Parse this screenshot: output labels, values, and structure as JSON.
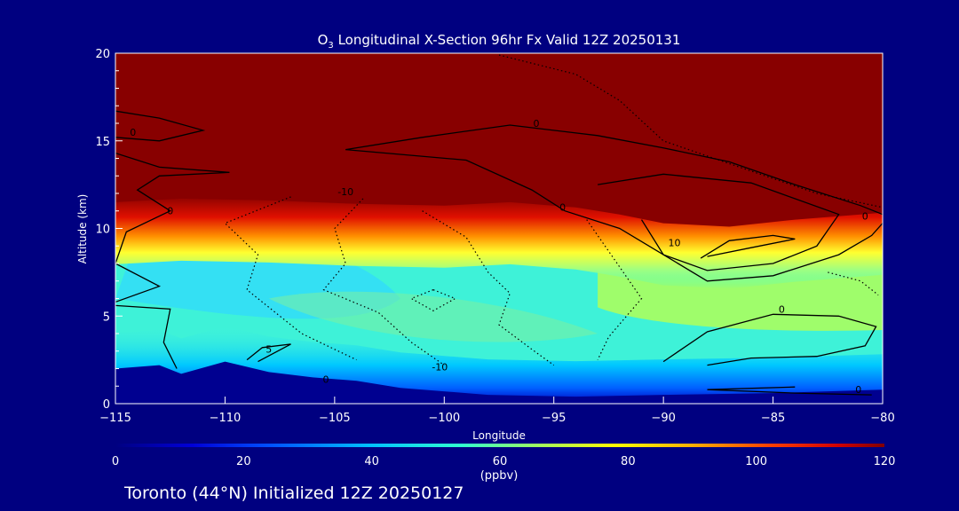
{
  "chart_data": {
    "type": "heatmap",
    "title": "O3 Longitudinal X-Section 96hr  Fx Valid 12Z 20250131",
    "title_parts": {
      "o": "O",
      "sub": "3",
      "rest": " Longitudinal X-Section 96hr  Fx Valid 12Z 20250131"
    },
    "xlabel": "Longitude",
    "ylabel": "Altitude (km)",
    "xlim": [
      -115,
      -80
    ],
    "ylim": [
      0,
      20
    ],
    "x_ticks": [
      -115,
      -110,
      -105,
      -100,
      -95,
      -90,
      -85,
      -80
    ],
    "x_tick_labels": [
      "−115",
      "−110",
      "−105",
      "−100",
      "−95",
      "−90",
      "−85",
      "−80"
    ],
    "y_ticks": [
      0,
      5,
      10,
      15,
      20
    ],
    "y_tick_labels": [
      "0",
      "5",
      "10",
      "15",
      "20"
    ],
    "colorbar": {
      "label": "(ppbv)",
      "ticks": [
        0,
        20,
        40,
        60,
        80,
        100,
        120
      ],
      "tick_labels": [
        "0",
        "20",
        "40",
        "60",
        "80",
        "100",
        "120"
      ],
      "range": [
        0,
        120
      ]
    },
    "fields": {
      "tropopause_height_km": [
        [
          -115,
          11.5
        ],
        [
          -112,
          11.7
        ],
        [
          -108,
          11.6
        ],
        [
          -104,
          11.4
        ],
        [
          -100,
          11.3
        ],
        [
          -97,
          11.5
        ],
        [
          -94,
          11.2
        ],
        [
          -92,
          10.8
        ],
        [
          -90,
          10.3
        ],
        [
          -87,
          10.1
        ],
        [
          -84,
          10.5
        ],
        [
          -80,
          10.9
        ]
      ],
      "surface_height_km": [
        [
          -115,
          2.0
        ],
        [
          -113,
          2.2
        ],
        [
          -112,
          1.7
        ],
        [
          -110,
          2.4
        ],
        [
          -108,
          1.8
        ],
        [
          -106,
          1.5
        ],
        [
          -104,
          1.3
        ],
        [
          -102,
          0.9
        ],
        [
          -98,
          0.5
        ],
        [
          -94,
          0.4
        ],
        [
          -90,
          0.5
        ],
        [
          -85,
          0.6
        ],
        [
          -80,
          0.8
        ]
      ],
      "regions_ppbv": [
        {
          "name": "stratosphere",
          "ppbv": 120
        },
        {
          "name": "mid-troposphere west",
          "ppbv": 45
        },
        {
          "name": "mid-troposphere center",
          "ppbv": 55
        },
        {
          "name": "mid-troposphere east",
          "ppbv": 70
        },
        {
          "name": "boundary layer",
          "ppbv": 45
        },
        {
          "name": "surface",
          "ppbv": 5
        }
      ]
    },
    "contour_labels": [
      {
        "text": "0",
        "x": -114.2,
        "y": 15.3
      },
      {
        "text": "0",
        "x": -112.5,
        "y": 10.8
      },
      {
        "text": "-10",
        "x": -104.5,
        "y": 11.9
      },
      {
        "text": "0",
        "x": -95.8,
        "y": 15.8
      },
      {
        "text": "0",
        "x": -94.6,
        "y": 11.0
      },
      {
        "text": "10",
        "x": -89.5,
        "y": 9.0
      },
      {
        "text": "0",
        "x": -80.8,
        "y": 10.5
      },
      {
        "text": "0",
        "x": -84.6,
        "y": 5.2
      },
      {
        "text": "5",
        "x": -108,
        "y": 2.9
      },
      {
        "text": "0",
        "x": -105.4,
        "y": 1.2
      },
      {
        "text": "-10",
        "x": -100.2,
        "y": 1.9
      },
      {
        "text": "0",
        "x": -81.1,
        "y": 0.6
      }
    ],
    "grid": false,
    "legend": "none"
  },
  "footer": {
    "location": "Toronto (44°N) Initialized 12Z 20250127"
  }
}
